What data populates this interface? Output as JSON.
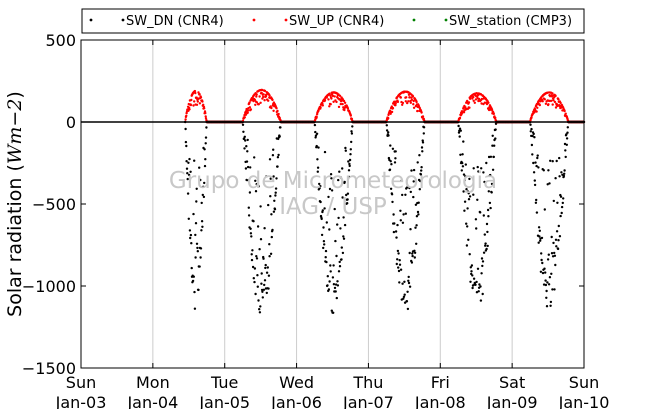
{
  "chart_data": {
    "type": "scatter",
    "title": "",
    "ylabel": "Solar radiation (Wm-2)",
    "ylabel_parts": {
      "prefix": "Solar radiation (",
      "unit": "Wm",
      "exponent": "−2",
      "suffix": ")"
    },
    "ylim": [
      -1500,
      500
    ],
    "yticks": [
      500,
      0,
      -500,
      -1000,
      -1500
    ],
    "ytick_labels": [
      "500",
      "0",
      "−500",
      "−1000",
      "−1500"
    ],
    "xlim": [
      0,
      7
    ],
    "xticks": [
      {
        "x": 0,
        "day": "Sun",
        "date": "Jan-03"
      },
      {
        "x": 1,
        "day": "Mon",
        "date": "Jan-04"
      },
      {
        "x": 2,
        "day": "Tue",
        "date": "Jan-05"
      },
      {
        "x": 3,
        "day": "Wed",
        "date": "Jan-06"
      },
      {
        "x": 4,
        "day": "Thu",
        "date": "Jan-07"
      },
      {
        "x": 5,
        "day": "Fri",
        "date": "Jan-08"
      },
      {
        "x": 6,
        "day": "Sat",
        "date": "Jan-09"
      },
      {
        "x": 7,
        "day": "Sun",
        "date": "Jan-10"
      }
    ],
    "grid": "vertical",
    "legend_position": "top",
    "series": [
      {
        "name": "SW_DN (CNR4)",
        "color": "#000000",
        "marker": "dot"
      },
      {
        "name": "SW_UP (CNR4)",
        "color": "#ff0000",
        "marker": "dot"
      },
      {
        "name": "SW_station (CMP3)",
        "color": "#008000",
        "marker": "dot"
      }
    ],
    "data_start_x": 1.45,
    "days": [
      {
        "start": 1.45,
        "end": 1.75,
        "peak_dn": -1200,
        "peak_up": 190
      },
      {
        "start": 2.25,
        "end": 2.78,
        "peak_dn": -1220,
        "peak_up": 195
      },
      {
        "start": 3.25,
        "end": 3.78,
        "peak_dn": -1190,
        "peak_up": 180
      },
      {
        "start": 4.25,
        "end": 4.78,
        "peak_dn": -1180,
        "peak_up": 185
      },
      {
        "start": 5.25,
        "end": 5.78,
        "peak_dn": -1170,
        "peak_up": 175
      },
      {
        "start": 6.25,
        "end": 6.78,
        "peak_dn": -1180,
        "peak_up": 180
      }
    ],
    "annotations": [
      "Grupo de Micrometeorologia",
      "IAG / USP"
    ]
  }
}
